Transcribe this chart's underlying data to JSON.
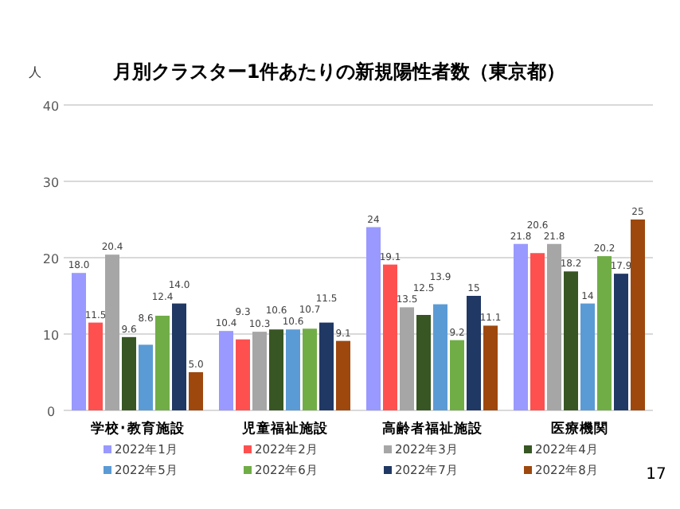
{
  "chart_data": {
    "type": "bar",
    "title": "月別クラスター1件あたりの新規陽性者数（東京都）",
    "ylabel": "人",
    "categories": [
      "学校･教育施設",
      "児童福祉施設",
      "高齢者福祉施設",
      "医療機関"
    ],
    "series": [
      {
        "name": "2022年1月",
        "color": "#9999ff",
        "values": [
          18.0,
          10.4,
          24,
          21.8
        ],
        "value_labels": [
          "18.0",
          "10.4",
          "24",
          "21.8"
        ]
      },
      {
        "name": "2022年2月",
        "color": "#ff5050",
        "values": [
          11.5,
          9.3,
          19.1,
          20.6
        ],
        "value_labels": [
          "11.5",
          "9.3",
          "19.1",
          "20.6"
        ]
      },
      {
        "name": "2022年3月",
        "color": "#a6a6a6",
        "values": [
          20.4,
          10.3,
          13.5,
          21.8
        ],
        "value_labels": [
          "20.4",
          "10.3",
          "13.5",
          "21.8"
        ]
      },
      {
        "name": "2022年4月",
        "color": "#375623",
        "values": [
          9.6,
          10.6,
          12.5,
          18.2
        ],
        "value_labels": [
          "9.6",
          "10.6",
          "12.5",
          "18.2"
        ]
      },
      {
        "name": "2022年5月",
        "color": "#5b9bd5",
        "values": [
          8.6,
          10.6,
          13.9,
          14
        ],
        "value_labels": [
          "8.6",
          "10.6",
          "13.9",
          "14"
        ]
      },
      {
        "name": "2022年6月",
        "color": "#70ad47",
        "values": [
          12.4,
          10.7,
          9.2,
          20.2
        ],
        "value_labels": [
          "12.4",
          "10.7",
          "9.2",
          "20.2"
        ]
      },
      {
        "name": "2022年7月",
        "color": "#203864",
        "values": [
          14.0,
          11.5,
          15,
          17.9
        ],
        "value_labels": [
          "14.0",
          "11.5",
          "15",
          "17.9"
        ]
      },
      {
        "name": "2022年8月",
        "color": "#9e480e",
        "values": [
          5.0,
          9.1,
          11.1,
          25
        ],
        "value_labels": [
          "5.0",
          "9.1",
          "11.1",
          "25"
        ]
      }
    ],
    "ylim": [
      0,
      40
    ],
    "yticks": [
      0,
      10,
      20,
      30,
      40
    ],
    "grid": "y",
    "legend": "bottom",
    "annotations": [
      "17"
    ]
  }
}
